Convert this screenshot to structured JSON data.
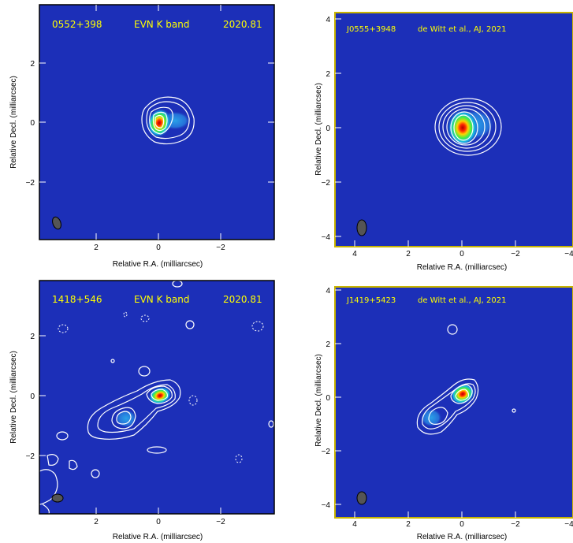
{
  "figure": {
    "panels": [
      {
        "id": "p1",
        "labels": [
          "0552+398",
          "EVN K band",
          "2020.81"
        ],
        "xlabel": "Relative R.A. (milliarcsec)",
        "ylabel": "Relative Decl. (milliarcsec)",
        "xticks": [
          "2",
          "0",
          "−2"
        ],
        "yticks": [
          "2",
          "0",
          "−2"
        ],
        "frame_color": "#000000"
      },
      {
        "id": "p2",
        "labels": [
          "J0555+3948",
          "de Witt et al., AJ, 2021"
        ],
        "xlabel": "Relative R.A. (milliarcsec)",
        "ylabel": "Relative Decl. (milliarcsec)",
        "xticks": [
          "4",
          "2",
          "0",
          "−2",
          "−4"
        ],
        "yticks": [
          "4",
          "2",
          "0",
          "−2",
          "−4"
        ],
        "frame_color": "#c8b400"
      },
      {
        "id": "p3",
        "labels": [
          "1418+546",
          "EVN K band",
          "2020.81"
        ],
        "xlabel": "Relative R.A. (milliarcsec)",
        "ylabel": "Relative Decl. (milliarcsec)",
        "xticks": [
          "2",
          "0",
          "−2"
        ],
        "yticks": [
          "2",
          "0",
          "−2"
        ],
        "frame_color": "#000000"
      },
      {
        "id": "p4",
        "labels": [
          "J1419+5423",
          "de Witt et al., AJ, 2021"
        ],
        "xlabel": "Relative R.A. (milliarcsec)",
        "ylabel": "Relative Decl. (milliarcsec)",
        "xticks": [
          "4",
          "2",
          "0",
          "−2",
          "−4"
        ],
        "yticks": [
          "4",
          "2",
          "0",
          "−2",
          "−4"
        ],
        "frame_color": "#c8b400"
      }
    ],
    "colors": {
      "background": "#1c2fb8",
      "contour": "#ffffff",
      "label": "#ffff00",
      "beam": "#555555"
    }
  }
}
